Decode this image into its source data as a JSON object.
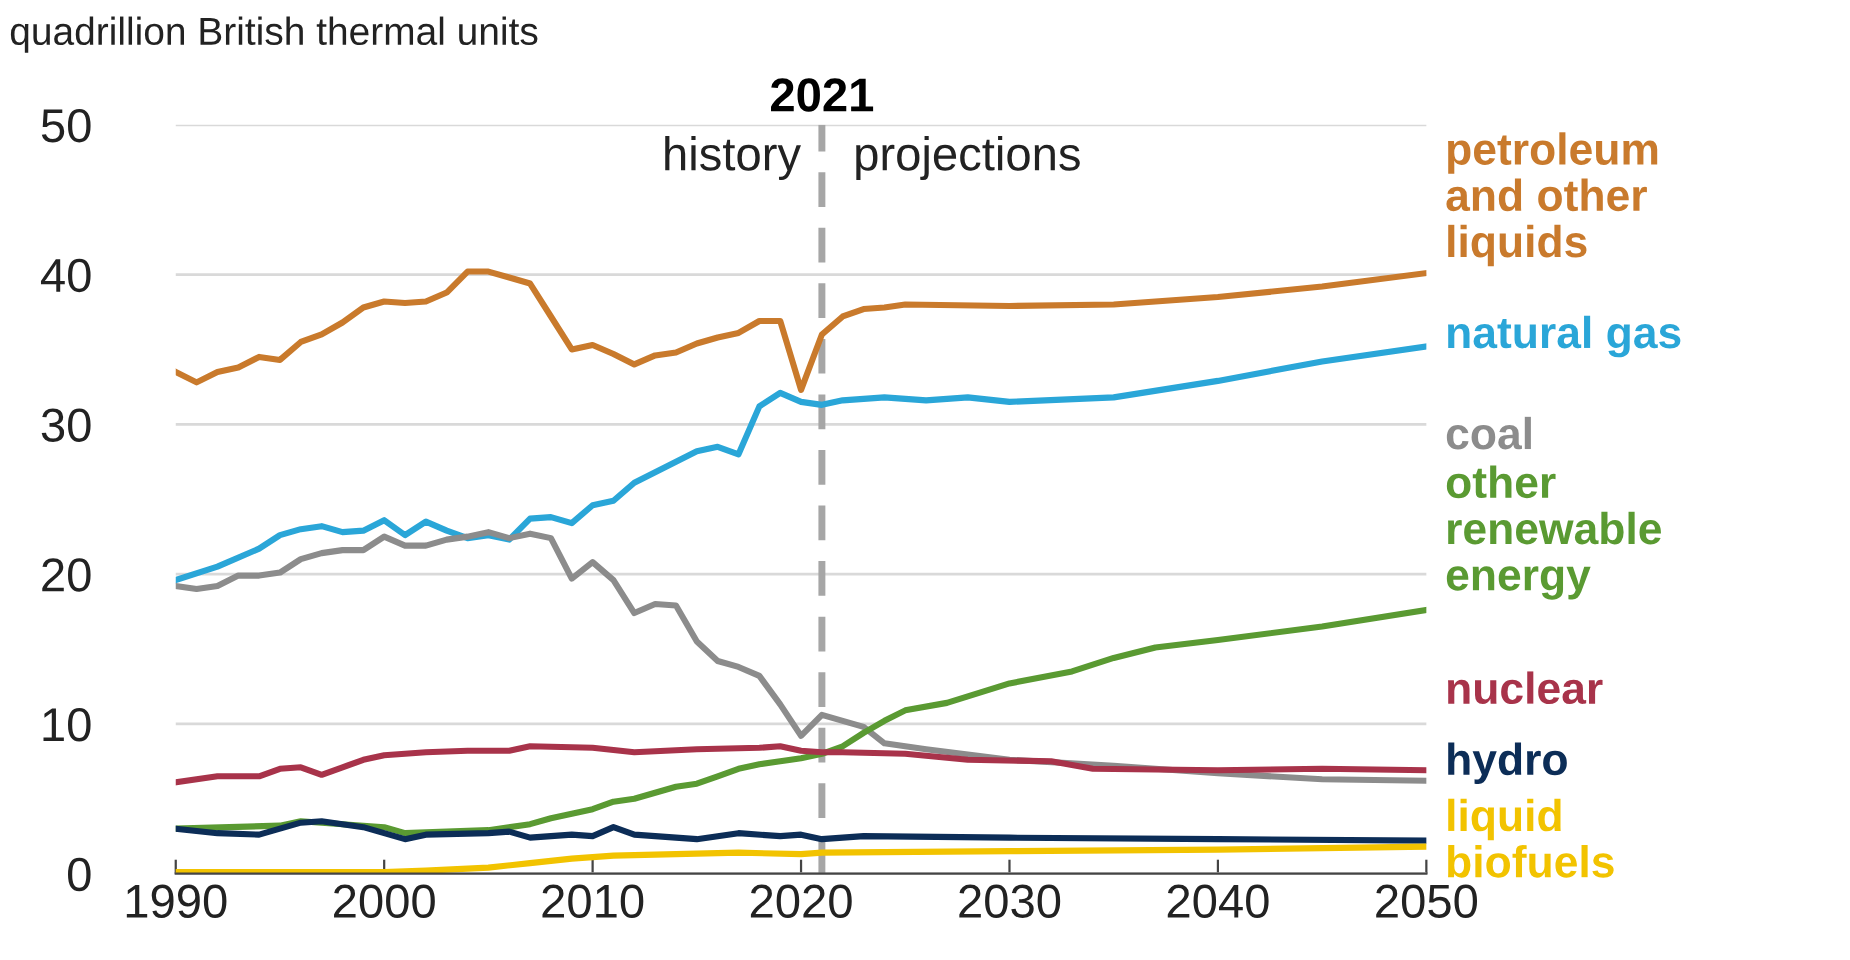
{
  "chart_data": {
    "type": "line",
    "ylabel": "quadrillion British thermal units",
    "xlim": [
      1990,
      2050
    ],
    "xticks": [
      1990,
      2000,
      2010,
      2020,
      2030,
      2040,
      2050
    ],
    "ylim": [
      0,
      50
    ],
    "yticks": [
      0,
      10,
      20,
      30,
      40,
      50
    ],
    "grid": "y",
    "marker": "none",
    "line_style": "solid",
    "ref_lines": [
      {
        "axis": "x",
        "value": 2021,
        "label": "2021",
        "color": "#a6a6a6",
        "line_style": "dashed"
      }
    ],
    "annotations": [
      "history",
      "projections"
    ],
    "series": [
      {
        "name": "petroleum\nand other\nliquids",
        "color": "#c97a2c",
        "x": [
          1990,
          1991,
          1992,
          1993,
          1994,
          1995,
          1996,
          1997,
          1998,
          1999,
          2000,
          2001,
          2002,
          2003,
          2004,
          2005,
          2006,
          2007,
          2008,
          2009,
          2010,
          2011,
          2012,
          2013,
          2014,
          2015,
          2016,
          2017,
          2018,
          2019,
          2020,
          2021,
          2022,
          2023,
          2024,
          2025,
          2030,
          2035,
          2040,
          2045,
          2050
        ],
        "values": [
          33.5,
          32.8,
          33.5,
          33.8,
          34.5,
          34.3,
          35.5,
          36.0,
          36.8,
          37.8,
          38.2,
          38.1,
          38.2,
          38.8,
          40.2,
          40.2,
          39.8,
          39.4,
          37.2,
          35.0,
          35.3,
          34.7,
          34.0,
          34.6,
          34.8,
          35.4,
          35.8,
          36.1,
          36.9,
          36.9,
          32.3,
          36.0,
          37.2,
          37.7,
          37.8,
          38.0,
          37.9,
          38.0,
          38.5,
          39.2,
          40.1
        ]
      },
      {
        "name": "natural gas",
        "color": "#2aa6d8",
        "x": [
          1990,
          1992,
          1994,
          1995,
          1996,
          1997,
          1998,
          1999,
          2000,
          2001,
          2002,
          2003,
          2004,
          2005,
          2006,
          2007,
          2008,
          2009,
          2010,
          2011,
          2012,
          2013,
          2014,
          2015,
          2016,
          2017,
          2018,
          2019,
          2020,
          2021,
          2022,
          2024,
          2026,
          2028,
          2030,
          2035,
          2040,
          2045,
          2050
        ],
        "values": [
          19.6,
          20.5,
          21.7,
          22.6,
          23.0,
          23.2,
          22.8,
          22.9,
          23.6,
          22.6,
          23.5,
          22.9,
          22.4,
          22.6,
          22.3,
          23.7,
          23.8,
          23.4,
          24.6,
          24.9,
          26.1,
          26.8,
          27.5,
          28.2,
          28.5,
          28.0,
          31.2,
          32.1,
          31.5,
          31.3,
          31.6,
          31.8,
          31.6,
          31.8,
          31.5,
          31.8,
          32.9,
          34.2,
          35.2
        ]
      },
      {
        "name": "coal",
        "color": "#8c8c8c",
        "x": [
          1990,
          1991,
          1992,
          1993,
          1994,
          1995,
          1996,
          1997,
          1998,
          1999,
          2000,
          2001,
          2002,
          2003,
          2004,
          2005,
          2006,
          2007,
          2008,
          2009,
          2010,
          2011,
          2012,
          2013,
          2014,
          2015,
          2016,
          2017,
          2018,
          2019,
          2020,
          2021,
          2022,
          2023,
          2024,
          2026,
          2030,
          2035,
          2040,
          2045,
          2050
        ],
        "values": [
          19.2,
          19.0,
          19.2,
          19.9,
          19.9,
          20.1,
          21.0,
          21.4,
          21.6,
          21.6,
          22.5,
          21.9,
          21.9,
          22.3,
          22.5,
          22.8,
          22.4,
          22.7,
          22.4,
          19.7,
          20.8,
          19.6,
          17.4,
          18.0,
          17.9,
          15.5,
          14.2,
          13.8,
          13.2,
          11.3,
          9.2,
          10.6,
          10.2,
          9.8,
          8.7,
          8.3,
          7.6,
          7.2,
          6.7,
          6.3,
          6.2
        ]
      },
      {
        "name": "other\nrenewable\nenergy",
        "color": "#5a9a32",
        "x": [
          1990,
          1995,
          1996,
          2000,
          2001,
          2003,
          2005,
          2007,
          2008,
          2009,
          2010,
          2011,
          2012,
          2013,
          2014,
          2015,
          2016,
          2017,
          2018,
          2019,
          2020,
          2021,
          2022,
          2023,
          2024,
          2025,
          2027,
          2030,
          2033,
          2035,
          2037,
          2040,
          2045,
          2050
        ],
        "values": [
          3.0,
          3.2,
          3.5,
          3.1,
          2.7,
          2.8,
          2.9,
          3.3,
          3.7,
          4.0,
          4.3,
          4.8,
          5.0,
          5.4,
          5.8,
          6.0,
          6.5,
          7.0,
          7.3,
          7.5,
          7.7,
          8.0,
          8.5,
          9.4,
          10.2,
          10.9,
          11.4,
          12.7,
          13.5,
          14.4,
          15.1,
          15.6,
          16.5,
          17.6
        ]
      },
      {
        "name": "nuclear",
        "color": "#a8334a",
        "x": [
          1990,
          1992,
          1994,
          1995,
          1996,
          1997,
          1998,
          1999,
          2000,
          2002,
          2004,
          2006,
          2007,
          2010,
          2012,
          2015,
          2018,
          2019,
          2020,
          2021,
          2022,
          2025,
          2028,
          2032,
          2034,
          2040,
          2045,
          2050
        ],
        "values": [
          6.1,
          6.5,
          6.5,
          7.0,
          7.1,
          6.6,
          7.1,
          7.6,
          7.9,
          8.1,
          8.2,
          8.2,
          8.5,
          8.4,
          8.1,
          8.3,
          8.4,
          8.5,
          8.2,
          8.1,
          8.1,
          8.0,
          7.6,
          7.5,
          7.0,
          6.9,
          7.0,
          6.9
        ]
      },
      {
        "name": "hydro",
        "color": "#0c2d57",
        "x": [
          1990,
          1992,
          1994,
          1996,
          1997,
          1999,
          2001,
          2002,
          2005,
          2006,
          2007,
          2009,
          2010,
          2011,
          2012,
          2015,
          2017,
          2019,
          2020,
          2021,
          2023,
          2030,
          2040,
          2050
        ],
        "values": [
          3.0,
          2.7,
          2.6,
          3.4,
          3.5,
          3.1,
          2.3,
          2.6,
          2.7,
          2.8,
          2.4,
          2.6,
          2.5,
          3.1,
          2.6,
          2.3,
          2.7,
          2.5,
          2.6,
          2.3,
          2.5,
          2.4,
          2.3,
          2.2
        ]
      },
      {
        "name": "liquid\nbiofuels",
        "color": "#f2c300",
        "x": [
          1990,
          2000,
          2002,
          2005,
          2007,
          2009,
          2011,
          2014,
          2017,
          2020,
          2021,
          2030,
          2040,
          2050
        ],
        "values": [
          0.1,
          0.1,
          0.2,
          0.4,
          0.7,
          1.0,
          1.2,
          1.3,
          1.4,
          1.3,
          1.4,
          1.5,
          1.6,
          1.8
        ]
      }
    ]
  }
}
